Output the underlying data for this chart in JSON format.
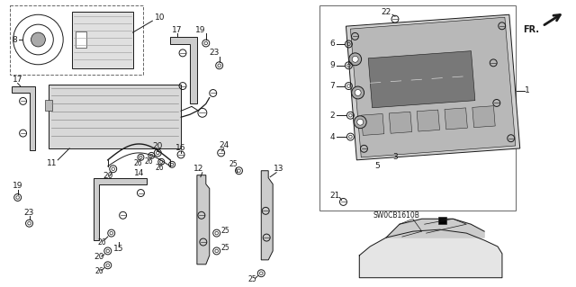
{
  "bg_color": "#ffffff",
  "fig_width": 6.4,
  "fig_height": 3.19,
  "dpi": 100,
  "dark": "#1a1a1a",
  "gray": "#666666",
  "light_gray": "#cccccc",
  "mid_gray": "#aaaaaa",
  "diagram_id": "SW0CB1610B"
}
